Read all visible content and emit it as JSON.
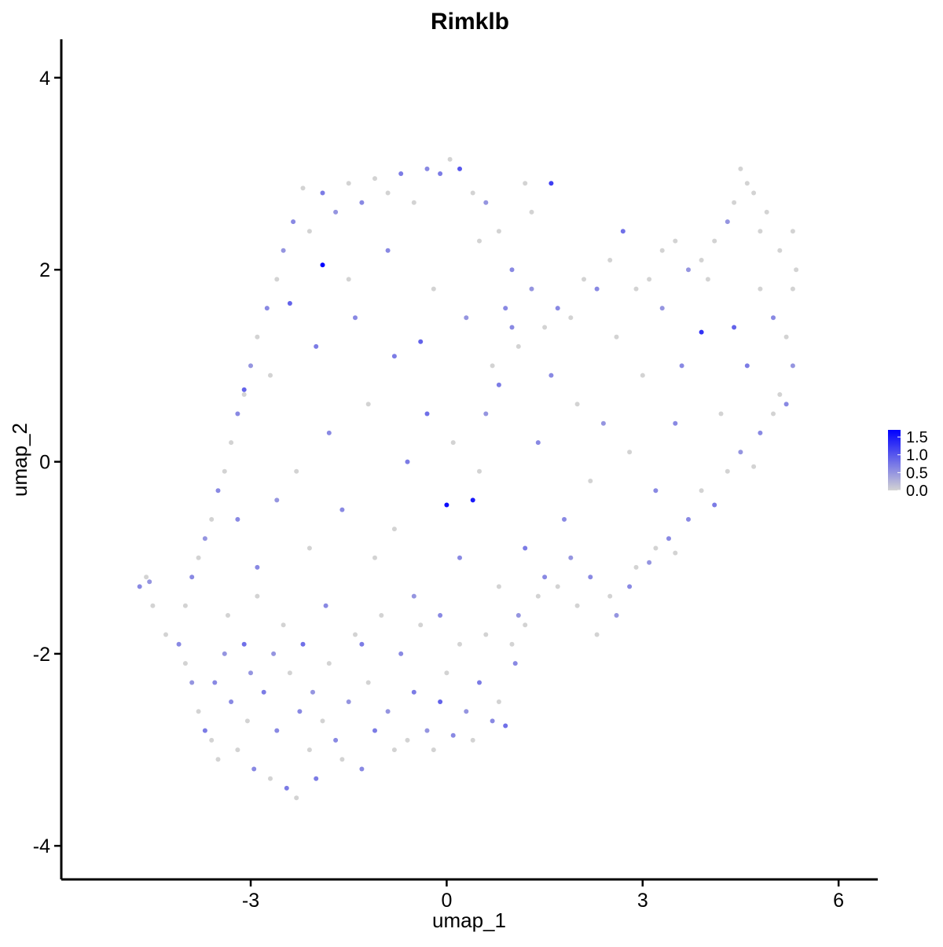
{
  "chart_data": {
    "type": "scatter",
    "title": "Rimklb",
    "xlabel": "umap_1",
    "ylabel": "umap_2",
    "xlim": [
      -5.9,
      6.6
    ],
    "ylim": [
      -4.35,
      4.4
    ],
    "x_ticks": [
      -3,
      0,
      3,
      6
    ],
    "y_ticks": [
      -4,
      -2,
      0,
      2,
      4
    ],
    "x_tick_labels": [
      "-3",
      "0",
      "3",
      "6"
    ],
    "y_tick_labels": [
      "-4",
      "-2",
      "0",
      "2",
      "4"
    ],
    "grid": false,
    "legend": {
      "placement": "right",
      "type": "colorbar",
      "min": 0.0,
      "max": 1.7,
      "ticks": [
        0.0,
        0.5,
        1.0,
        1.5
      ],
      "tick_labels": [
        "0.0",
        "0.5",
        "1.0",
        "1.5"
      ],
      "low_color": "#D3D3D3",
      "high_color": "#0000FF"
    },
    "point_color_low": "#D3D3D3",
    "point_color_high": "#0000FF",
    "points": [
      [
        -4.7,
        -1.3,
        0.6
      ],
      [
        -4.6,
        -1.2,
        0.0
      ],
      [
        -4.55,
        -1.25,
        0.5
      ],
      [
        -4.5,
        -1.5,
        0.0
      ],
      [
        -4.3,
        -1.8,
        0.0
      ],
      [
        -4.1,
        -1.9,
        0.6
      ],
      [
        -4.0,
        -2.1,
        0.0
      ],
      [
        -3.9,
        -2.3,
        0.5
      ],
      [
        -3.8,
        -2.6,
        0.0
      ],
      [
        -3.7,
        -2.8,
        0.7
      ],
      [
        -3.6,
        -2.9,
        0.0
      ],
      [
        -3.55,
        -2.3,
        0.6
      ],
      [
        -3.5,
        -3.1,
        0.0
      ],
      [
        -3.4,
        -2.0,
        0.5
      ],
      [
        -3.35,
        -1.6,
        0.0
      ],
      [
        -3.3,
        -2.5,
        0.6
      ],
      [
        -3.2,
        -3.0,
        0.0
      ],
      [
        -3.1,
        -1.9,
        0.8
      ],
      [
        -3.05,
        -2.7,
        0.0
      ],
      [
        -3.0,
        -2.2,
        0.5
      ],
      [
        -2.95,
        -3.2,
        0.6
      ],
      [
        -2.9,
        -1.4,
        0.0
      ],
      [
        -2.8,
        -2.4,
        0.7
      ],
      [
        -2.7,
        -3.3,
        0.0
      ],
      [
        -2.65,
        -2.0,
        0.5
      ],
      [
        -2.6,
        -2.8,
        0.6
      ],
      [
        -2.5,
        -1.7,
        0.0
      ],
      [
        -2.45,
        -3.4,
        0.7
      ],
      [
        -2.4,
        -2.2,
        0.0
      ],
      [
        -2.3,
        -3.5,
        0.0
      ],
      [
        -2.25,
        -2.6,
        0.6
      ],
      [
        -2.2,
        -1.9,
        0.8
      ],
      [
        -2.1,
        -3.0,
        0.0
      ],
      [
        -2.05,
        -2.4,
        0.5
      ],
      [
        -2.0,
        -3.3,
        0.7
      ],
      [
        -1.9,
        -2.7,
        0.0
      ],
      [
        -1.85,
        -1.5,
        0.6
      ],
      [
        -1.8,
        -2.1,
        0.0
      ],
      [
        -1.7,
        -2.9,
        0.6
      ],
      [
        -1.6,
        -3.1,
        0.0
      ],
      [
        -1.5,
        -2.5,
        0.5
      ],
      [
        -1.4,
        -1.8,
        0.0
      ],
      [
        -1.3,
        -3.2,
        0.6
      ],
      [
        -1.2,
        -2.3,
        0.0
      ],
      [
        -1.1,
        -2.8,
        0.7
      ],
      [
        -1.0,
        -1.6,
        0.0
      ],
      [
        -0.9,
        -2.6,
        0.5
      ],
      [
        -0.8,
        -3.0,
        0.0
      ],
      [
        -0.7,
        -2.0,
        0.6
      ],
      [
        -0.6,
        -2.9,
        0.0
      ],
      [
        -0.5,
        -2.4,
        0.7
      ],
      [
        -0.4,
        -1.7,
        0.0
      ],
      [
        -0.3,
        -2.8,
        0.5
      ],
      [
        -0.2,
        -3.0,
        0.0
      ],
      [
        -0.1,
        -2.5,
        0.9
      ],
      [
        0.0,
        -2.2,
        0.0
      ],
      [
        0.1,
        -2.85,
        0.6
      ],
      [
        0.2,
        -1.9,
        0.0
      ],
      [
        0.3,
        -2.6,
        0.5
      ],
      [
        0.4,
        -2.9,
        0.0
      ],
      [
        0.5,
        -2.3,
        0.7
      ],
      [
        0.6,
        -1.8,
        0.0
      ],
      [
        0.7,
        -2.7,
        0.6
      ],
      [
        0.8,
        -2.5,
        0.0
      ],
      [
        0.9,
        -2.75,
        0.8
      ],
      [
        1.0,
        -1.9,
        0.0
      ],
      [
        1.05,
        -2.1,
        0.6
      ],
      [
        1.1,
        -1.6,
        0.5
      ],
      [
        1.2,
        -1.7,
        0.0
      ],
      [
        1.4,
        -1.4,
        0.0
      ],
      [
        1.5,
        -1.2,
        0.6
      ],
      [
        1.7,
        -1.3,
        0.0
      ],
      [
        1.9,
        -1.0,
        0.5
      ],
      [
        2.0,
        -1.5,
        0.0
      ],
      [
        2.2,
        -1.2,
        0.6
      ],
      [
        2.3,
        -1.8,
        0.0
      ],
      [
        2.5,
        -1.4,
        0.0
      ],
      [
        2.6,
        -1.6,
        0.5
      ],
      [
        2.8,
        -1.3,
        0.6
      ],
      [
        2.9,
        -1.1,
        0.0
      ],
      [
        3.1,
        -1.05,
        0.5
      ],
      [
        3.2,
        -0.9,
        0.0
      ],
      [
        3.4,
        -0.8,
        0.6
      ],
      [
        3.5,
        -0.95,
        0.0
      ],
      [
        3.7,
        -0.6,
        0.6
      ],
      [
        3.9,
        -0.3,
        0.0
      ],
      [
        4.1,
        -0.45,
        0.7
      ],
      [
        4.3,
        -0.1,
        0.0
      ],
      [
        4.5,
        0.1,
        0.5
      ],
      [
        4.7,
        -0.05,
        0.0
      ],
      [
        4.8,
        0.3,
        0.6
      ],
      [
        5.0,
        0.5,
        0.0
      ],
      [
        5.1,
        0.7,
        0.0
      ],
      [
        5.2,
        0.6,
        0.6
      ],
      [
        5.3,
        1.0,
        0.5
      ],
      [
        5.2,
        1.3,
        0.0
      ],
      [
        5.3,
        1.8,
        0.0
      ],
      [
        5.35,
        2.0,
        0.0
      ],
      [
        5.3,
        2.4,
        0.0
      ],
      [
        5.1,
        2.2,
        0.0
      ],
      [
        4.9,
        2.6,
        0.0
      ],
      [
        4.8,
        2.4,
        0.0
      ],
      [
        4.7,
        2.8,
        0.0
      ],
      [
        4.6,
        2.9,
        0.0
      ],
      [
        4.5,
        3.05,
        0.0
      ],
      [
        4.4,
        2.7,
        0.0
      ],
      [
        4.3,
        2.5,
        0.5
      ],
      [
        4.1,
        2.3,
        0.0
      ],
      [
        3.9,
        2.1,
        0.0
      ],
      [
        3.7,
        2.0,
        0.5
      ],
      [
        3.5,
        2.3,
        0.0
      ],
      [
        3.3,
        2.2,
        0.0
      ],
      [
        3.1,
        1.9,
        0.0
      ],
      [
        2.9,
        1.8,
        0.0
      ],
      [
        2.7,
        2.4,
        0.8
      ],
      [
        2.5,
        2.1,
        0.0
      ],
      [
        2.3,
        1.8,
        0.6
      ],
      [
        2.1,
        1.9,
        0.0
      ],
      [
        1.9,
        1.5,
        0.0
      ],
      [
        1.7,
        1.6,
        0.6
      ],
      [
        1.5,
        1.4,
        0.0
      ],
      [
        1.3,
        1.8,
        0.5
      ],
      [
        1.1,
        1.2,
        0.0
      ],
      [
        0.9,
        1.6,
        0.6
      ],
      [
        0.7,
        1.0,
        0.0
      ],
      [
        0.5,
        2.3,
        0.0
      ],
      [
        0.6,
        2.7,
        0.5
      ],
      [
        0.8,
        2.4,
        0.0
      ],
      [
        1.2,
        2.9,
        0.0
      ],
      [
        1.6,
        2.9,
        1.2
      ],
      [
        1.3,
        2.6,
        0.0
      ],
      [
        1.0,
        2.0,
        0.6
      ],
      [
        0.4,
        2.8,
        0.0
      ],
      [
        0.2,
        3.05,
        1.0
      ],
      [
        0.05,
        3.15,
        0.0
      ],
      [
        -0.1,
        3.0,
        0.7
      ],
      [
        -0.3,
        3.05,
        0.6
      ],
      [
        -0.5,
        2.7,
        0.0
      ],
      [
        -0.7,
        3.0,
        0.7
      ],
      [
        -0.9,
        2.8,
        0.0
      ],
      [
        -1.1,
        2.95,
        0.0
      ],
      [
        -1.3,
        2.7,
        0.6
      ],
      [
        -1.5,
        2.9,
        0.0
      ],
      [
        -1.7,
        2.6,
        0.5
      ],
      [
        -1.9,
        2.8,
        0.7
      ],
      [
        -2.1,
        2.4,
        0.0
      ],
      [
        -2.2,
        2.85,
        0.0
      ],
      [
        -2.35,
        2.5,
        0.6
      ],
      [
        -2.5,
        2.2,
        0.5
      ],
      [
        -2.6,
        1.9,
        0.0
      ],
      [
        -2.75,
        1.6,
        0.6
      ],
      [
        -2.9,
        1.3,
        0.0
      ],
      [
        -3.0,
        1.0,
        0.5
      ],
      [
        -3.1,
        0.7,
        0.0
      ],
      [
        -3.2,
        0.5,
        0.6
      ],
      [
        -3.3,
        0.2,
        0.0
      ],
      [
        -3.4,
        -0.1,
        0.0
      ],
      [
        -3.5,
        -0.3,
        0.6
      ],
      [
        -3.6,
        -0.6,
        0.0
      ],
      [
        -3.7,
        -0.8,
        0.5
      ],
      [
        -3.8,
        -1.0,
        0.0
      ],
      [
        -3.9,
        -1.2,
        0.6
      ],
      [
        -4.0,
        -1.5,
        0.0
      ],
      [
        -3.1,
        0.75,
        0.9
      ],
      [
        -1.9,
        2.05,
        1.7
      ],
      [
        -2.4,
        1.65,
        0.9
      ],
      [
        -1.4,
        1.5,
        0.6
      ],
      [
        -0.8,
        1.1,
        0.7
      ],
      [
        -0.3,
        0.5,
        0.8
      ],
      [
        0.0,
        -0.45,
        1.6
      ],
      [
        0.4,
        -0.4,
        1.5
      ],
      [
        -0.4,
        1.25,
        0.9
      ],
      [
        0.8,
        0.8,
        0.7
      ],
      [
        1.4,
        0.2,
        0.6
      ],
      [
        3.9,
        1.35,
        1.3
      ],
      [
        4.4,
        1.4,
        0.9
      ],
      [
        3.0,
        0.9,
        0.0
      ],
      [
        3.6,
        1.0,
        0.6
      ],
      [
        4.2,
        0.5,
        0.0
      ],
      [
        4.6,
        1.0,
        0.7
      ],
      [
        2.0,
        0.6,
        0.0
      ],
      [
        2.4,
        0.4,
        0.5
      ],
      [
        2.8,
        0.1,
        0.0
      ],
      [
        3.2,
        -0.3,
        0.6
      ],
      [
        2.2,
        -0.2,
        0.0
      ],
      [
        1.8,
        -0.6,
        0.6
      ],
      [
        1.2,
        -0.9,
        0.7
      ],
      [
        0.8,
        -1.3,
        0.0
      ],
      [
        0.2,
        -1.0,
        0.6
      ],
      [
        -0.5,
        -1.4,
        0.5
      ],
      [
        -1.1,
        -1.0,
        0.0
      ],
      [
        -1.6,
        -0.5,
        0.6
      ],
      [
        -2.1,
        -0.9,
        0.0
      ],
      [
        -2.6,
        -0.4,
        0.5
      ],
      [
        -2.9,
        -1.1,
        0.6
      ],
      [
        -2.3,
        -0.1,
        0.0
      ],
      [
        -1.8,
        0.3,
        0.6
      ],
      [
        -1.2,
        0.6,
        0.0
      ],
      [
        -0.6,
        0.0,
        0.7
      ],
      [
        0.1,
        0.2,
        0.0
      ],
      [
        0.6,
        0.5,
        0.5
      ],
      [
        1.0,
        1.4,
        0.6
      ],
      [
        -2.0,
        1.2,
        0.7
      ],
      [
        -1.5,
        1.9,
        0.0
      ],
      [
        -0.9,
        2.2,
        0.6
      ],
      [
        -0.2,
        1.8,
        0.0
      ],
      [
        0.3,
        1.5,
        0.5
      ],
      [
        -2.7,
        0.9,
        0.0
      ],
      [
        -3.2,
        -0.6,
        0.6
      ],
      [
        -1.3,
        -1.9,
        0.7
      ],
      [
        -0.8,
        -0.7,
        0.0
      ],
      [
        -0.1,
        -1.6,
        0.6
      ],
      [
        0.5,
        -0.1,
        0.0
      ],
      [
        1.6,
        0.9,
        0.6
      ],
      [
        2.6,
        1.3,
        0.0
      ],
      [
        3.3,
        1.6,
        0.5
      ],
      [
        4.8,
        1.8,
        0.0
      ],
      [
        5.0,
        1.5,
        0.6
      ],
      [
        4.0,
        1.9,
        0.0
      ],
      [
        3.5,
        0.4,
        0.6
      ]
    ]
  }
}
